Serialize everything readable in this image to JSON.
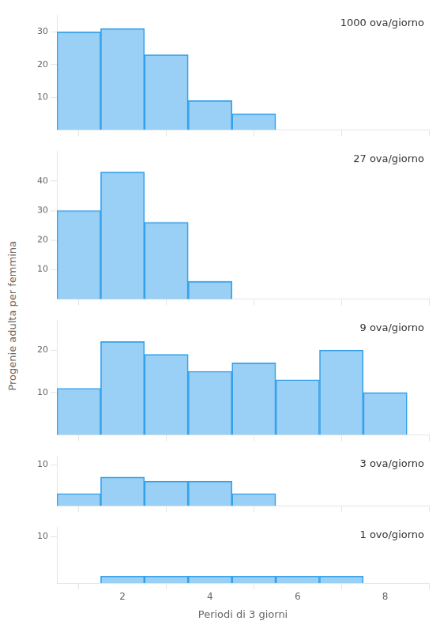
{
  "chart_data": [
    {
      "type": "bar",
      "annotations": [
        "1000 ova/giorno"
      ],
      "x": [
        1,
        2,
        3,
        4,
        5
      ],
      "values": [
        30,
        31,
        23,
        9,
        5
      ],
      "xlim": [
        0.5,
        9.0
      ],
      "xticks": [
        2,
        4,
        6,
        8
      ],
      "ylim": [
        0,
        35
      ],
      "yticks": [
        10,
        20,
        30
      ],
      "grid": false,
      "tick_labels": "y"
    },
    {
      "type": "bar",
      "annotations": [
        "27 ova/giorno"
      ],
      "x": [
        1,
        2,
        3,
        4
      ],
      "values": [
        30,
        43,
        26,
        6
      ],
      "xlim": [
        0.5,
        9.0
      ],
      "xticks": [
        2,
        4,
        6,
        8
      ],
      "ylim": [
        0,
        50
      ],
      "yticks": [
        10,
        20,
        30,
        40
      ],
      "grid": false,
      "tick_labels": "y"
    },
    {
      "type": "bar",
      "annotations": [
        "9 ova/giorno"
      ],
      "ylabel": "Progenie adulta per femmina",
      "x": [
        1,
        2,
        3,
        4,
        5,
        6,
        7,
        8
      ],
      "values": [
        11,
        22,
        19,
        15,
        17,
        13,
        20,
        10
      ],
      "xlim": [
        0.5,
        9.0
      ],
      "xticks": [
        2,
        4,
        6,
        8
      ],
      "ylim": [
        0,
        27
      ],
      "yticks": [
        10,
        20
      ],
      "grid": false,
      "tick_labels": "y"
    },
    {
      "type": "bar",
      "annotations": [
        "3 ova/giorno"
      ],
      "x": [
        1,
        2,
        3,
        4,
        5
      ],
      "values": [
        3,
        7,
        6,
        6,
        3
      ],
      "xlim": [
        0.5,
        9.0
      ],
      "xticks": [
        2,
        4,
        6,
        8
      ],
      "ylim": [
        0,
        12
      ],
      "yticks": [
        10
      ],
      "grid": false,
      "tick_labels": "y"
    },
    {
      "type": "bar",
      "annotations": [
        "1 ovo/giorno"
      ],
      "xlabel": "Periodi di 3 giorni",
      "x": [
        2,
        3,
        4,
        5,
        6,
        7
      ],
      "values": [
        1.5,
        1.5,
        1.5,
        1.5,
        1.5,
        1.5
      ],
      "xlim": [
        0.5,
        9.0
      ],
      "xticks": [
        2,
        4,
        6,
        8
      ],
      "ylim": [
        0,
        12
      ],
      "yticks": [
        10
      ],
      "grid": false
    }
  ]
}
